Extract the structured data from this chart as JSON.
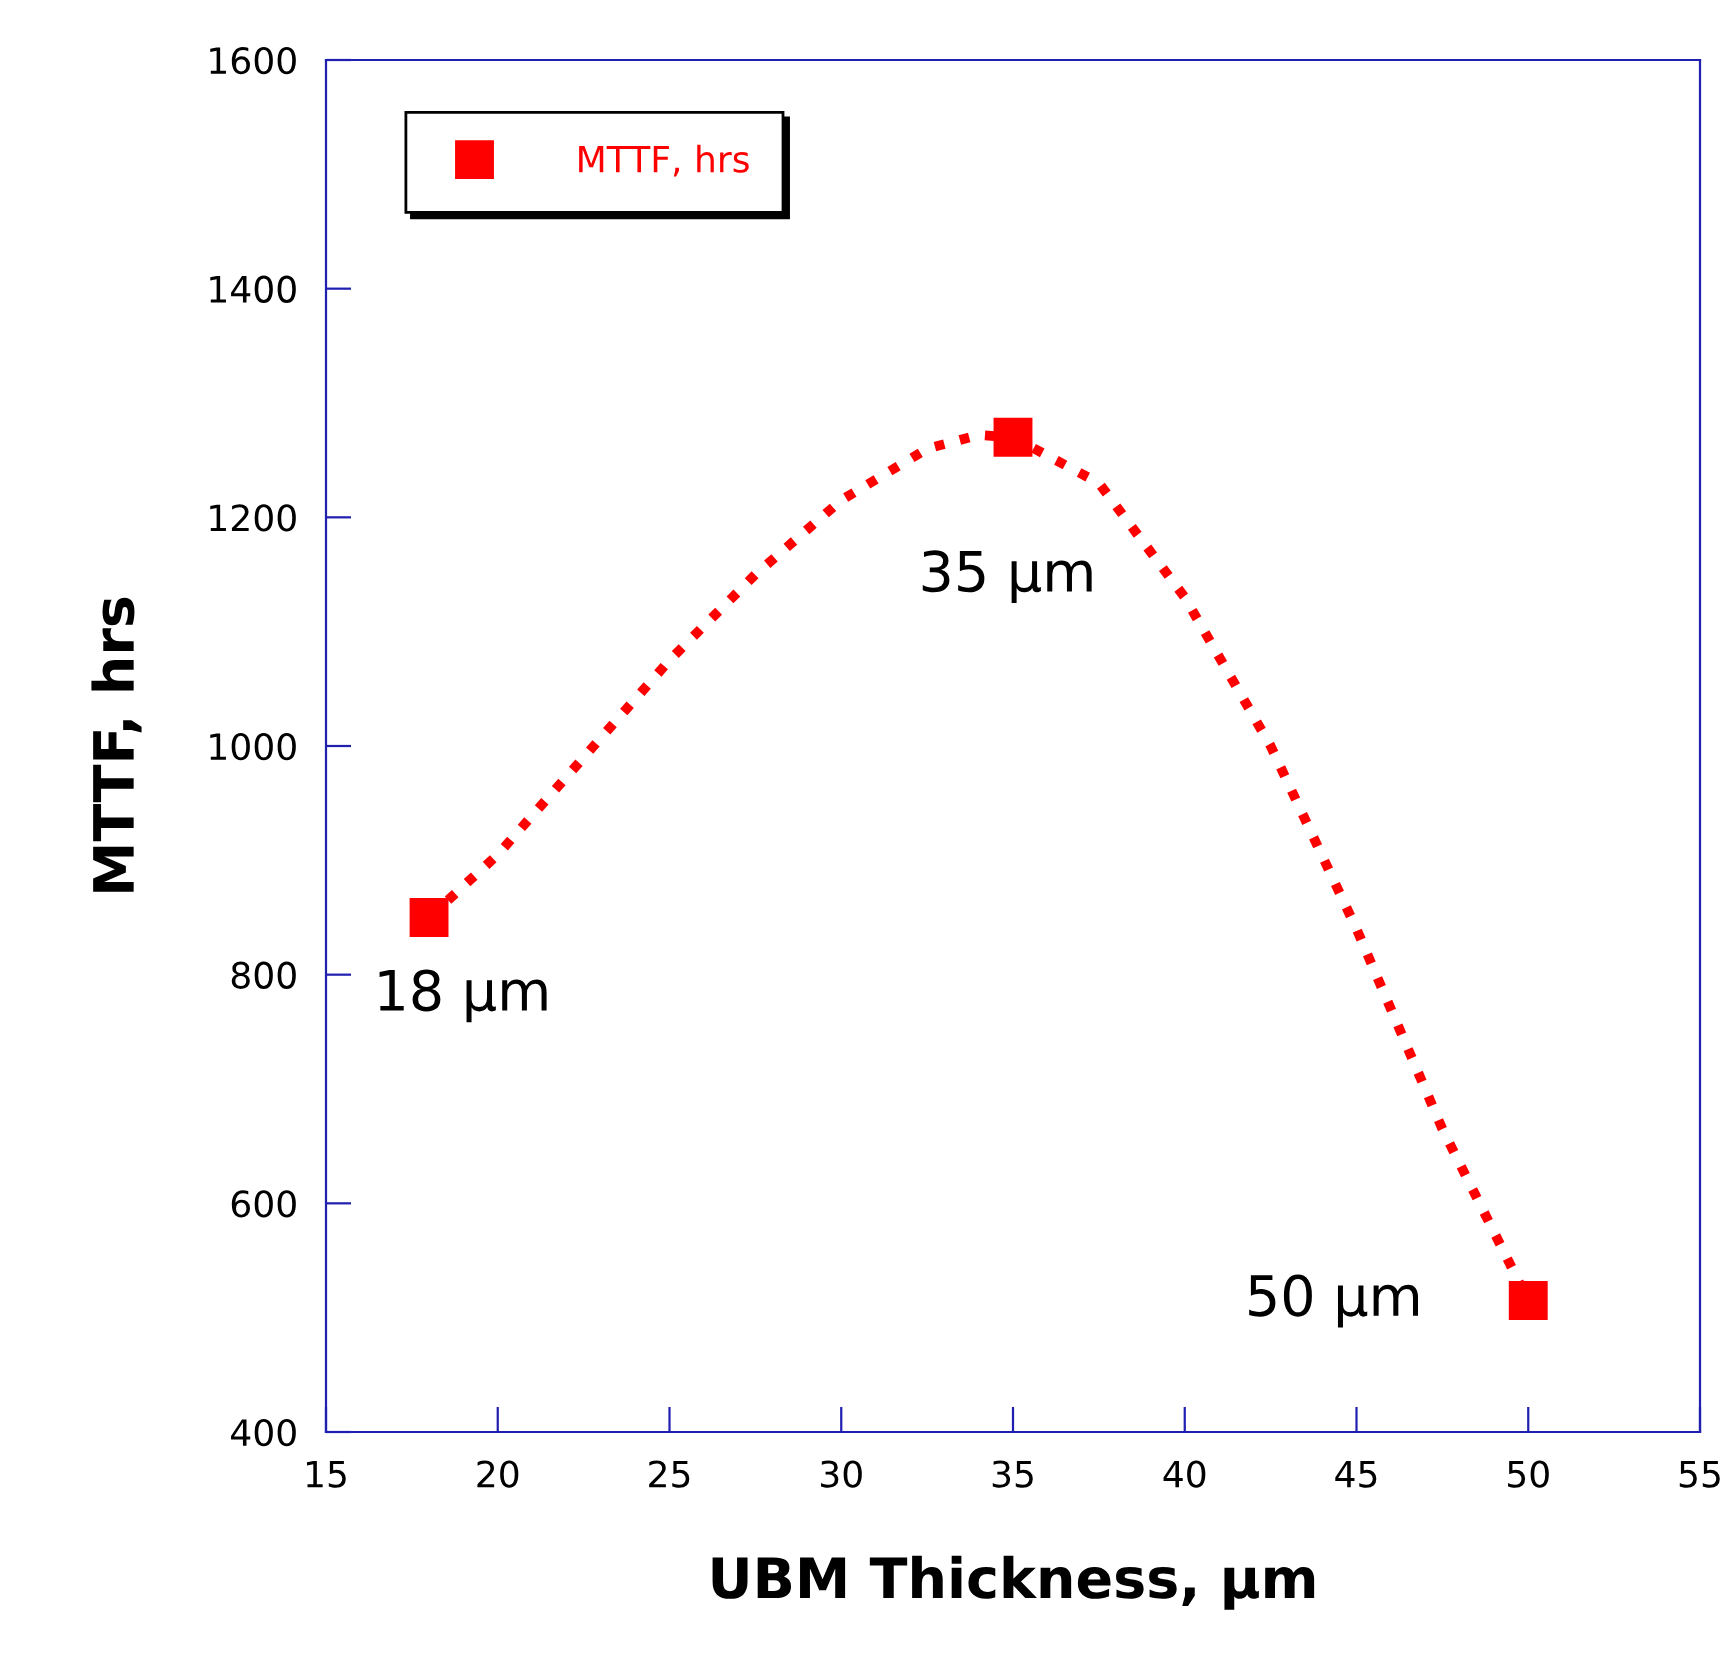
{
  "chart_data": {
    "type": "scatter",
    "xlabel": "UBM Thickness, µm",
    "ylabel": "MTTF, hrs",
    "x": [
      18,
      35,
      50
    ],
    "series": [
      {
        "name": "MTTF, hrs",
        "marker": "square",
        "color": "#ff0000",
        "values": [
          850,
          1270,
          515
        ]
      },
      {
        "type": "line",
        "marker": "none",
        "line_style": "dotted",
        "color": "#ff0000",
        "x": [
          18,
          20,
          22.5,
          25,
          27.5,
          30,
          32.5,
          34,
          35,
          37.5,
          40,
          42.5,
          45,
          47.5,
          50
        ],
        "values": [
          850,
          905,
          990,
          1075,
          1150,
          1215,
          1260,
          1272,
          1270,
          1230,
          1130,
          1000,
          840,
          665,
          515
        ]
      }
    ],
    "legend": "top left",
    "grid": false,
    "xlim": [
      15,
      55
    ],
    "xticks": [
      15,
      20,
      25,
      30,
      35,
      40,
      45,
      50,
      55
    ],
    "ylim": [
      400,
      1600
    ],
    "yticks": [
      400,
      600,
      800,
      1000,
      1200,
      1400,
      1600
    ],
    "annotations": [
      {
        "text": "18 µm",
        "x": 18,
        "y": 850
      },
      {
        "text": "35 µm",
        "x": 35,
        "y": 1270
      },
      {
        "text": "50 µm",
        "x": 50,
        "y": 515
      }
    ]
  }
}
